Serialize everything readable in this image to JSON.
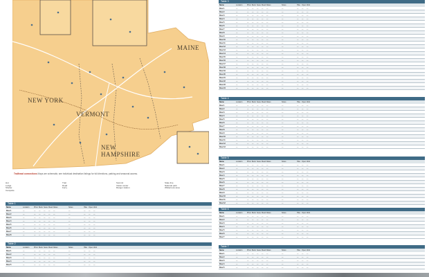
{
  "map": {
    "state_labels": [
      "Maine",
      "New York",
      "Vermont",
      "New Hampshire"
    ],
    "caption_prefix": "Trailhead connections",
    "caption_text": "Maps are schematic; see individual destination listings for full directions, parking and seasonal access."
  },
  "legend": {
    "columns": [
      [
        "Hut",
        "Lodge",
        "Shelter",
        "Campsite"
      ],
      [
        "Trail",
        "Road",
        "Ferry"
      ],
      [
        "Summit",
        "Visitor center",
        "Ranger station"
      ],
      [
        "State line",
        "National park",
        "Wilderness area"
      ]
    ]
  },
  "tables": {
    "col_heads": [
      "Name",
      "Location",
      "Phone",
      "Beds",
      "Season",
      "Meals",
      "Rates",
      "Notes",
      "Hike",
      "Open",
      "Web"
    ],
    "left_1": {
      "title": "Table 1",
      "rows": [
        [
          "Row 1",
          "—",
          "—",
          "—",
          "—",
          "—",
          "—",
          "—",
          "—",
          "—",
          "—"
        ],
        [
          "Row 2",
          "—",
          "—",
          "—",
          "—",
          "—",
          "—",
          "—",
          "—",
          "—",
          "—"
        ],
        [
          "Row 3",
          "—",
          "—",
          "—",
          "—",
          "—",
          "—",
          "—",
          "—",
          "—",
          "—"
        ],
        [
          "Row 4",
          "—",
          "—",
          "—",
          "—",
          "—",
          "—",
          "—",
          "—",
          "—",
          "—"
        ],
        [
          "Row 5",
          "—",
          "—",
          "—",
          "—",
          "—",
          "—",
          "—",
          "—",
          "—",
          "—"
        ],
        [
          "Row 6",
          "—",
          "—",
          "—",
          "—",
          "—",
          "—",
          "—",
          "—",
          "—",
          "—"
        ],
        [
          "Row 7",
          "—",
          "—",
          "—",
          "—",
          "—",
          "—",
          "—",
          "—",
          "—",
          "—"
        ],
        [
          "Row 8",
          "—",
          "—",
          "—",
          "—",
          "—",
          "—",
          "—",
          "—",
          "—",
          "—"
        ]
      ]
    },
    "left_2": {
      "title": "Table 2",
      "rows": [
        [
          "Row 1",
          "—",
          "—",
          "—",
          "—",
          "—",
          "—",
          "—",
          "—",
          "—",
          "—"
        ],
        [
          "Row 2",
          "—",
          "—",
          "—",
          "—",
          "—",
          "—",
          "—",
          "—",
          "—",
          "—"
        ],
        [
          "Row 3",
          "—",
          "—",
          "—",
          "—",
          "—",
          "—",
          "—",
          "—",
          "—",
          "—"
        ],
        [
          "Row 4",
          "—",
          "—",
          "—",
          "—",
          "—",
          "—",
          "—",
          "—",
          "—",
          "—"
        ],
        [
          "Row 5",
          "—",
          "—",
          "—",
          "—",
          "—",
          "—",
          "—",
          "—",
          "—",
          "—"
        ]
      ]
    },
    "right_1": {
      "title": "Table 3",
      "rows": [
        [
          "Row 1",
          "—",
          "—",
          "—",
          "—",
          "—",
          "—",
          "—",
          "—",
          "—",
          "—"
        ],
        [
          "Row 2",
          "—",
          "—",
          "—",
          "—",
          "—",
          "—",
          "—",
          "—",
          "—",
          "—"
        ],
        [
          "Row 3",
          "—",
          "—",
          "—",
          "—",
          "—",
          "—",
          "—",
          "—",
          "—",
          "—"
        ],
        [
          "Row 4",
          "—",
          "—",
          "—",
          "—",
          "—",
          "—",
          "—",
          "—",
          "—",
          "—"
        ],
        [
          "Row 5",
          "—",
          "—",
          "—",
          "—",
          "—",
          "—",
          "—",
          "—",
          "—",
          "—"
        ],
        [
          "Row 6",
          "—",
          "—",
          "—",
          "—",
          "—",
          "—",
          "—",
          "—",
          "—",
          "—"
        ],
        [
          "Row 7",
          "—",
          "—",
          "—",
          "—",
          "—",
          "—",
          "—",
          "—",
          "—",
          "—"
        ],
        [
          "Row 8",
          "—",
          "—",
          "—",
          "—",
          "—",
          "—",
          "—",
          "—",
          "—",
          "—"
        ],
        [
          "Row 9",
          "—",
          "—",
          "—",
          "—",
          "—",
          "—",
          "—",
          "—",
          "—",
          "—"
        ],
        [
          "Row 10",
          "—",
          "—",
          "—",
          "—",
          "—",
          "—",
          "—",
          "—",
          "—",
          "—"
        ],
        [
          "Row 11",
          "—",
          "—",
          "—",
          "—",
          "—",
          "—",
          "—",
          "—",
          "—",
          "—"
        ],
        [
          "Row 12",
          "—",
          "—",
          "—",
          "—",
          "—",
          "—",
          "—",
          "—",
          "—",
          "—"
        ],
        [
          "Row 13",
          "—",
          "—",
          "—",
          "—",
          "—",
          "—",
          "—",
          "—",
          "—",
          "—"
        ],
        [
          "Row 14",
          "—",
          "—",
          "—",
          "—",
          "—",
          "—",
          "—",
          "—",
          "—",
          "—"
        ],
        [
          "Row 15",
          "—",
          "—",
          "—",
          "—",
          "—",
          "—",
          "—",
          "—",
          "—",
          "—"
        ],
        [
          "Row 16",
          "—",
          "—",
          "—",
          "—",
          "—",
          "—",
          "—",
          "—",
          "—",
          "—"
        ],
        [
          "Row 17",
          "—",
          "—",
          "—",
          "—",
          "—",
          "—",
          "—",
          "—",
          "—",
          "—"
        ],
        [
          "Row 18",
          "—",
          "—",
          "—",
          "—",
          "—",
          "—",
          "—",
          "—",
          "—",
          "—"
        ],
        [
          "Row 19",
          "—",
          "—",
          "—",
          "—",
          "—",
          "—",
          "—",
          "—",
          "—",
          "—"
        ],
        [
          "Row 20",
          "—",
          "—",
          "—",
          "—",
          "—",
          "—",
          "—",
          "—",
          "—",
          "—"
        ],
        [
          "Row 21",
          "—",
          "—",
          "—",
          "—",
          "—",
          "—",
          "—",
          "—",
          "—",
          "—"
        ],
        [
          "Row 22",
          "—",
          "—",
          "—",
          "—",
          "—",
          "—",
          "—",
          "—",
          "—",
          "—"
        ],
        [
          "Row 23",
          "—",
          "—",
          "—",
          "—",
          "—",
          "—",
          "—",
          "—",
          "—",
          "—"
        ],
        [
          "Row 24",
          "—",
          "—",
          "—",
          "—",
          "—",
          "—",
          "—",
          "—",
          "—",
          "—"
        ]
      ]
    },
    "right_2": {
      "title": "Table 4",
      "rows": [
        [
          "Row 1",
          "—",
          "—",
          "—",
          "—",
          "—",
          "—",
          "—",
          "—",
          "—",
          "—"
        ],
        [
          "Row 2",
          "—",
          "—",
          "—",
          "—",
          "—",
          "—",
          "—",
          "—",
          "—",
          "—"
        ],
        [
          "Row 3",
          "—",
          "—",
          "—",
          "—",
          "—",
          "—",
          "—",
          "—",
          "—",
          "—"
        ],
        [
          "Row 4",
          "—",
          "—",
          "—",
          "—",
          "—",
          "—",
          "—",
          "—",
          "—",
          "—"
        ],
        [
          "Row 5",
          "—",
          "—",
          "—",
          "—",
          "—",
          "—",
          "—",
          "—",
          "—",
          "—"
        ],
        [
          "Row 6",
          "—",
          "—",
          "—",
          "—",
          "—",
          "—",
          "—",
          "—",
          "—",
          "—"
        ],
        [
          "Row 7",
          "—",
          "—",
          "—",
          "—",
          "—",
          "—",
          "—",
          "—",
          "—",
          "—"
        ],
        [
          "Row 8",
          "—",
          "—",
          "—",
          "—",
          "—",
          "—",
          "—",
          "—",
          "—",
          "—"
        ],
        [
          "Row 9",
          "—",
          "—",
          "—",
          "—",
          "—",
          "—",
          "—",
          "—",
          "—",
          "—"
        ],
        [
          "Row 10",
          "—",
          "—",
          "—",
          "—",
          "—",
          "—",
          "—",
          "—",
          "—",
          "—"
        ],
        [
          "Row 11",
          "—",
          "—",
          "—",
          "—",
          "—",
          "—",
          "—",
          "—",
          "—",
          "—"
        ],
        [
          "Row 12",
          "—",
          "—",
          "—",
          "—",
          "—",
          "—",
          "—",
          "—",
          "—",
          "—"
        ],
        [
          "Row 13",
          "—",
          "—",
          "—",
          "—",
          "—",
          "—",
          "—",
          "—",
          "—",
          "—"
        ]
      ]
    },
    "right_3": {
      "title": "Table 5",
      "rows": [
        [
          "Row 1",
          "—",
          "—",
          "—",
          "—",
          "—",
          "—",
          "—",
          "—",
          "—",
          "—"
        ],
        [
          "Row 2",
          "—",
          "—",
          "—",
          "—",
          "—",
          "—",
          "—",
          "—",
          "—",
          "—"
        ],
        [
          "Row 3",
          "—",
          "—",
          "—",
          "—",
          "—",
          "—",
          "—",
          "—",
          "—",
          "—"
        ],
        [
          "Row 4",
          "—",
          "—",
          "—",
          "—",
          "—",
          "—",
          "—",
          "—",
          "—",
          "—"
        ],
        [
          "Row 5",
          "—",
          "—",
          "—",
          "—",
          "—",
          "—",
          "—",
          "—",
          "—",
          "—"
        ],
        [
          "Row 6",
          "—",
          "—",
          "—",
          "—",
          "—",
          "—",
          "—",
          "—",
          "—",
          "—"
        ],
        [
          "Row 7",
          "—",
          "—",
          "—",
          "—",
          "—",
          "—",
          "—",
          "—",
          "—",
          "—"
        ],
        [
          "Row 8",
          "—",
          "—",
          "—",
          "—",
          "—",
          "—",
          "—",
          "—",
          "—",
          "—"
        ],
        [
          "Row 9",
          "—",
          "—",
          "—",
          "—",
          "—",
          "—",
          "—",
          "—",
          "—",
          "—"
        ],
        [
          "Row 10",
          "—",
          "—",
          "—",
          "—",
          "—",
          "—",
          "—",
          "—",
          "—",
          "—"
        ],
        [
          "Row 11",
          "—",
          "—",
          "—",
          "—",
          "—",
          "—",
          "—",
          "—",
          "—",
          "—"
        ],
        [
          "Row 12",
          "—",
          "—",
          "—",
          "—",
          "—",
          "—",
          "—",
          "—",
          "—",
          "—"
        ]
      ]
    },
    "right_4": {
      "title": "Table 6",
      "rows": [
        [
          "Row 1",
          "—",
          "—",
          "—",
          "—",
          "—",
          "—",
          "—",
          "—",
          "—",
          "—"
        ],
        [
          "Row 2",
          "—",
          "—",
          "—",
          "—",
          "—",
          "—",
          "—",
          "—",
          "—",
          "—"
        ],
        [
          "Row 3",
          "—",
          "—",
          "—",
          "—",
          "—",
          "—",
          "—",
          "—",
          "—",
          "—"
        ],
        [
          "Row 4",
          "—",
          "—",
          "—",
          "—",
          "—",
          "—",
          "—",
          "—",
          "—",
          "—"
        ],
        [
          "Row 5",
          "—",
          "—",
          "—",
          "—",
          "—",
          "—",
          "—",
          "—",
          "—",
          "—"
        ],
        [
          "Row 6",
          "—",
          "—",
          "—",
          "—",
          "—",
          "—",
          "—",
          "—",
          "—",
          "—"
        ],
        [
          "Row 7",
          "—",
          "—",
          "—",
          "—",
          "—",
          "—",
          "—",
          "—",
          "—",
          "—"
        ]
      ]
    },
    "right_5": {
      "title": "Table 7",
      "rows": [
        [
          "Row 1",
          "—",
          "—",
          "—",
          "—",
          "—",
          "—",
          "—",
          "—",
          "—",
          "—"
        ],
        [
          "Row 2",
          "—",
          "—",
          "—",
          "—",
          "—",
          "—",
          "—",
          "—",
          "—",
          "—"
        ],
        [
          "Row 3",
          "—",
          "—",
          "—",
          "—",
          "—",
          "—",
          "—",
          "—",
          "—",
          "—"
        ],
        [
          "Row 4",
          "—",
          "—",
          "—",
          "—",
          "—",
          "—",
          "—",
          "—",
          "—",
          "—"
        ],
        [
          "Row 5",
          "—",
          "—",
          "—",
          "—",
          "—",
          "—",
          "—",
          "—",
          "—",
          "—"
        ]
      ]
    }
  },
  "colors": {
    "land": "#f6cf8e",
    "land_edge": "#e0ad63",
    "table_header": "#3f6b86",
    "road": "#ffffff"
  }
}
